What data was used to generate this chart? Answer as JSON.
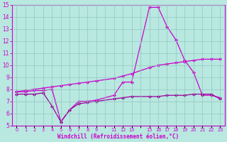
{
  "xlabel": "Windchill (Refroidissement éolien,°C)",
  "bg_color": "#b8e8e0",
  "line_color1": "#cc00cc",
  "line_color2": "#cc00cc",
  "line_color3": "#990099",
  "grid_color": "#90c8c0",
  "x_labels": [
    "0",
    "1",
    "2",
    "3",
    "4",
    "5",
    "6",
    "7",
    "8",
    "9",
    "",
    "11",
    "12",
    "13",
    "",
    "15",
    "16",
    "17",
    "18",
    "19",
    "20",
    "21",
    "22",
    "23"
  ],
  "x_ticks": [
    0,
    1,
    2,
    3,
    4,
    5,
    6,
    7,
    8,
    9,
    10,
    11,
    12,
    13,
    14,
    15,
    16,
    17,
    18,
    19,
    20,
    21,
    22,
    23
  ],
  "ylim": [
    5,
    15
  ],
  "yticks": [
    5,
    6,
    7,
    8,
    9,
    10,
    11,
    12,
    13,
    14,
    15
  ],
  "line1_x": [
    0,
    1,
    2,
    3,
    4,
    5,
    6,
    7,
    8,
    9,
    11,
    12,
    13,
    15,
    16,
    17,
    18,
    19,
    20,
    21,
    22,
    23
  ],
  "line1_y": [
    7.8,
    7.8,
    7.9,
    7.9,
    8.0,
    5.3,
    6.3,
    7.0,
    7.0,
    7.1,
    7.5,
    8.6,
    8.6,
    14.8,
    14.8,
    13.2,
    12.1,
    10.4,
    9.4,
    7.5,
    7.5,
    7.3
  ],
  "line2_x": [
    0,
    1,
    2,
    3,
    4,
    5,
    6,
    7,
    8,
    9,
    11,
    12,
    13,
    15,
    16,
    17,
    18,
    19,
    20,
    21,
    22,
    23
  ],
  "line2_y": [
    7.8,
    7.9,
    8.0,
    8.1,
    8.2,
    8.3,
    8.4,
    8.5,
    8.6,
    8.7,
    8.9,
    9.1,
    9.3,
    9.8,
    10.0,
    10.1,
    10.2,
    10.3,
    10.4,
    10.5,
    10.5,
    10.5
  ],
  "line3_x": [
    0,
    1,
    2,
    3,
    4,
    5,
    6,
    7,
    8,
    9,
    11,
    12,
    13,
    15,
    16,
    17,
    18,
    19,
    20,
    21,
    22,
    23
  ],
  "line3_y": [
    7.6,
    7.6,
    7.6,
    7.7,
    6.6,
    5.3,
    6.3,
    6.8,
    6.9,
    7.0,
    7.2,
    7.3,
    7.4,
    7.4,
    7.4,
    7.5,
    7.5,
    7.5,
    7.6,
    7.6,
    7.6,
    7.2
  ]
}
